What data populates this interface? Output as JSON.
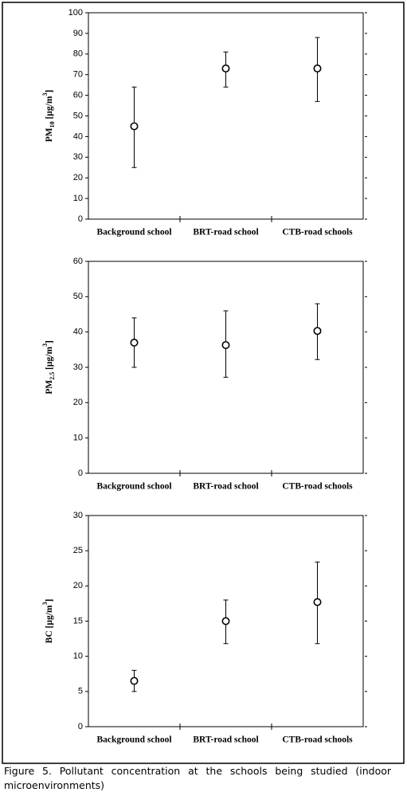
{
  "chart_data": [
    {
      "type": "errorbar",
      "categories": [
        "Background school",
        "BRT-road school",
        "CTB-road schools"
      ],
      "values": [
        45,
        73,
        73
      ],
      "lower": [
        25,
        64,
        57
      ],
      "upper": [
        64,
        81,
        88
      ],
      "color": "#000000",
      "ylabel": [
        {
          "text": "PM"
        },
        {
          "text": "10",
          "shift": "sub"
        },
        {
          "text": " [µg/m"
        },
        {
          "text": "3",
          "shift": "super"
        },
        {
          "text": "]"
        }
      ],
      "ylim": [
        0,
        100
      ],
      "yticks": [
        0,
        10,
        20,
        30,
        40,
        50,
        60,
        70,
        80,
        90,
        100
      ]
    },
    {
      "type": "errorbar",
      "categories": [
        "Background school",
        "BRT-road school",
        "CTB-road schools"
      ],
      "values": [
        37,
        36.3,
        40.3
      ],
      "lower": [
        30,
        27.2,
        32.2
      ],
      "upper": [
        44,
        46,
        48
      ],
      "color": "#000000",
      "ylabel": [
        {
          "text": "PM"
        },
        {
          "text": "2.5",
          "shift": "sub"
        },
        {
          "text": " [µg/m"
        },
        {
          "text": "3",
          "shift": "super"
        },
        {
          "text": "]"
        }
      ],
      "ylim": [
        0,
        60
      ],
      "yticks": [
        0,
        10,
        20,
        30,
        40,
        50,
        60
      ]
    },
    {
      "type": "errorbar",
      "categories": [
        "Background school",
        "BRT-road school",
        "CTB-road schools"
      ],
      "values": [
        6.5,
        15,
        17.7
      ],
      "lower": [
        5,
        11.8,
        11.8
      ],
      "upper": [
        8,
        18,
        23.4
      ],
      "color": "#000000",
      "ylabel": [
        {
          "text": "BC [µg/m"
        },
        {
          "text": "3",
          "shift": "super"
        },
        {
          "text": "]"
        }
      ],
      "ylim": [
        0,
        30
      ],
      "yticks": [
        0,
        5,
        10,
        15,
        20,
        25,
        30
      ]
    }
  ],
  "caption": "Figure 5. Pollutant concentration at the schools being studied (indoor microenvironments)"
}
